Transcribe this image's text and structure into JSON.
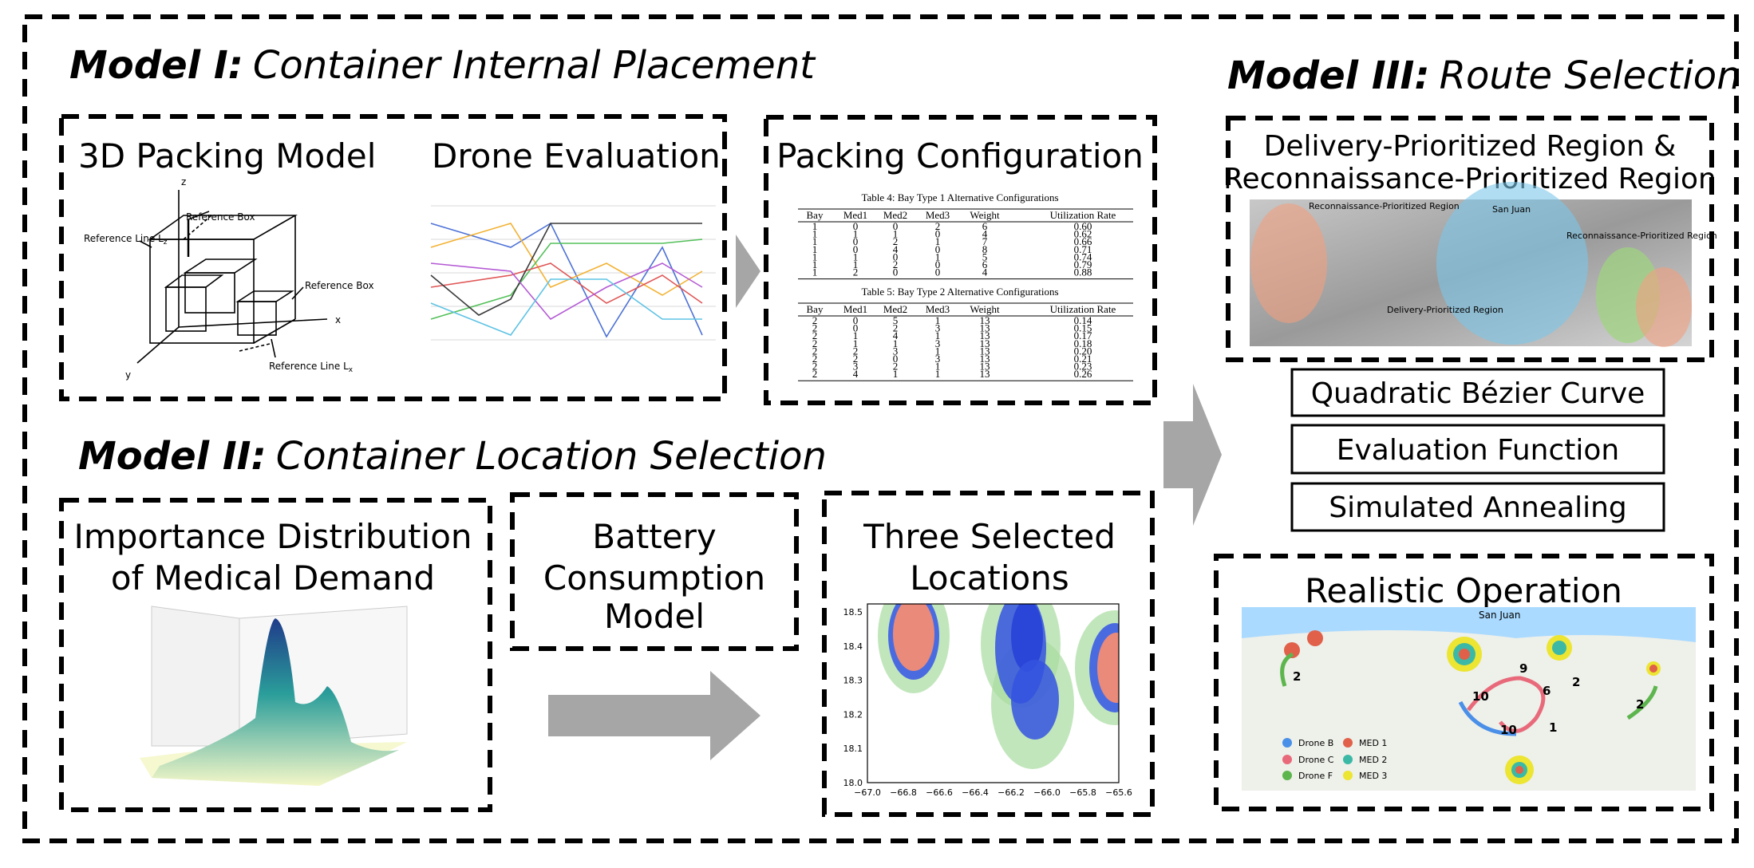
{
  "model1": {
    "title_bold": "Model I:",
    "title_rest": "Container Internal Placement",
    "packing_model": {
      "title": "3D Packing Model",
      "axis_x": "x",
      "axis_y": "y",
      "axis_z": "z",
      "reference_box_top": "Reference Box",
      "reference_box_right": "Reference Box",
      "reference_line_z": {
        "text": "Reference Line L",
        "sub": "z"
      },
      "reference_line_x": {
        "text": "Reference Line L",
        "sub": "x"
      }
    },
    "drone_evaluation": {
      "title": "Drone Evaluation"
    },
    "packing_configuration": {
      "title": "Packing Configuration",
      "tables": [
        {
          "caption": "Table 4: Bay Type 1 Alternative Configurations",
          "header": [
            "Bay",
            "Med1",
            "Med2",
            "Med3",
            "Weight",
            "Utilization Rate"
          ],
          "rows": [
            [
              "1",
              "0",
              "0",
              "2",
              "6",
              "0.60"
            ],
            [
              "1",
              "1",
              "1",
              "0",
              "4",
              "0.62"
            ],
            [
              "1",
              "0",
              "2",
              "1",
              "7",
              "0.66"
            ],
            [
              "1",
              "0",
              "4",
              "0",
              "8",
              "0.71"
            ],
            [
              "1",
              "1",
              "0",
              "1",
              "5",
              "0.74"
            ],
            [
              "1",
              "1",
              "2",
              "0",
              "6",
              "0.79"
            ],
            [
              "1",
              "2",
              "0",
              "0",
              "4",
              "0.88"
            ]
          ]
        },
        {
          "caption": "Table 5: Bay Type 2 Alternative Configurations",
          "header": [
            "Bay",
            "Med1",
            "Med2",
            "Med3",
            "Weight",
            "Utilization Rate"
          ],
          "rows": [
            [
              "2",
              "0",
              "5",
              "1",
              "13",
              "0.14"
            ],
            [
              "2",
              "0",
              "2",
              "3",
              "13",
              "0.15"
            ],
            [
              "2",
              "1",
              "4",
              "1",
              "13",
              "0.17"
            ],
            [
              "2",
              "1",
              "1",
              "3",
              "13",
              "0.18"
            ],
            [
              "2",
              "2",
              "3",
              "1",
              "13",
              "0.20"
            ],
            [
              "2",
              "2",
              "0",
              "3",
              "13",
              "0.21"
            ],
            [
              "2",
              "3",
              "2",
              "1",
              "13",
              "0.23"
            ],
            [
              "2",
              "4",
              "1",
              "1",
              "13",
              "0.26"
            ]
          ]
        }
      ]
    }
  },
  "model2": {
    "title_bold": "Model II:",
    "title_rest": "Container Location Selection",
    "importance": {
      "title_lines": [
        "Importance Distribution",
        "of Medical Demand"
      ]
    },
    "battery": {
      "title_lines": [
        "Battery",
        "Consumption",
        "Model"
      ]
    },
    "locations": {
      "title_lines": [
        "Three Selected",
        "Locations"
      ],
      "xticks": [
        "−67.0",
        "−66.8",
        "−66.6",
        "−66.4",
        "−66.2",
        "−66.0",
        "−65.8",
        "−65.6"
      ],
      "yticks": [
        "18.0",
        "18.1",
        "18.2",
        "18.3",
        "18.4",
        "18.5"
      ]
    }
  },
  "model3": {
    "title_bold": "Model III:",
    "title_rest": "Route Selection",
    "regions": {
      "title_lines": [
        "Delivery-Prioritized Region &",
        "Reconnaissance-Prioritized Region"
      ],
      "map_labels": [
        "Reconnaissance-Prioritized Region",
        "San Juan",
        "Reconnaissance-Prioritized Region",
        "Delivery-Prioritized Region"
      ]
    },
    "methods": [
      "Quadratic Bézier Curve",
      "Evaluation Function",
      "Simulated Annealing"
    ],
    "operation": {
      "title": "Realistic Operation",
      "city": "San Juan",
      "route_numbers": [
        "2",
        "9",
        "2",
        "10",
        "6",
        "10",
        "1",
        "2"
      ],
      "drones": [
        "Drone B",
        "Drone C",
        "Drone F"
      ],
      "meds": [
        "MED 1",
        "MED 2",
        "MED 3"
      ]
    }
  }
}
